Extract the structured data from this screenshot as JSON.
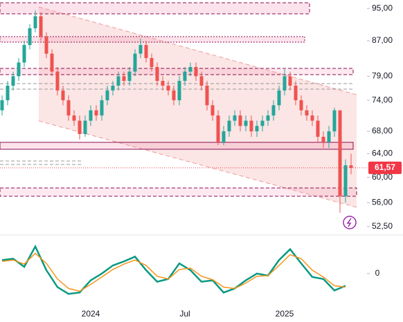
{
  "chart_data": [
    {
      "type": "candlestick",
      "scale": "log",
      "up_color": "#26a69a",
      "down_color": "#ef5350",
      "categories": [
        null,
        null,
        null,
        null,
        null,
        null,
        null,
        null,
        null,
        null,
        null,
        null,
        null,
        null,
        null,
        null,
        "2024",
        null,
        null,
        null,
        null,
        null,
        null,
        null,
        null,
        null,
        null,
        null,
        null,
        null,
        null,
        null,
        null,
        "Jul",
        null,
        null,
        null,
        null,
        null,
        null,
        null,
        null,
        null,
        null,
        null,
        null,
        null,
        null,
        null,
        null,
        null,
        "2025",
        null,
        null,
        null,
        null,
        null,
        null,
        null,
        null,
        null,
        null,
        null,
        null
      ],
      "open": [
        72,
        74,
        77,
        79,
        82,
        86,
        90,
        93,
        88,
        84,
        80,
        76,
        74,
        71,
        70,
        67.5,
        70,
        72,
        71,
        74,
        76,
        77,
        79,
        78,
        80,
        84,
        86,
        83,
        81,
        78,
        77,
        76,
        74,
        78,
        80,
        81,
        79,
        77,
        73,
        71,
        66,
        68,
        70,
        71,
        69,
        70,
        68,
        69,
        70,
        71,
        73,
        76,
        79,
        77,
        74,
        72,
        71,
        70,
        67,
        66,
        68,
        72,
        57,
        62
      ],
      "high": [
        75,
        78,
        80,
        83,
        87,
        91,
        94.5,
        94,
        89,
        85,
        81,
        77,
        75,
        72,
        71,
        71,
        73,
        73,
        75,
        77,
        78,
        80,
        80,
        81,
        85,
        87.5,
        87,
        84,
        82,
        79,
        78,
        77,
        79,
        81,
        82,
        82,
        80,
        78,
        74,
        72,
        69,
        71,
        72,
        72,
        71,
        71,
        70,
        71,
        72,
        74,
        77,
        80.5,
        80,
        78,
        75,
        73,
        72,
        71,
        68,
        69,
        72.5,
        72,
        63,
        64
      ],
      "low": [
        71,
        73,
        76,
        78,
        81,
        85,
        89,
        87,
        83,
        79,
        75,
        73,
        70,
        69,
        66.5,
        67,
        69,
        70,
        70,
        73,
        75,
        76,
        77,
        77,
        79,
        83,
        82,
        80,
        77,
        76,
        75,
        73,
        73,
        77,
        79,
        78,
        76,
        72,
        70,
        65.5,
        65.5,
        67,
        69,
        68,
        68,
        67,
        67,
        68,
        69,
        70,
        72,
        75,
        76,
        73,
        71,
        70,
        69,
        66,
        65,
        65,
        67,
        54.5,
        56,
        60.5
      ],
      "close": [
        74,
        77,
        79,
        82,
        86,
        90,
        93,
        88,
        84,
        80,
        76,
        74,
        71,
        70,
        67.5,
        70,
        72,
        71,
        74,
        76,
        77,
        79,
        78,
        80,
        84,
        86,
        83,
        81,
        78,
        77,
        76,
        74,
        78,
        80,
        81,
        79,
        77,
        73,
        71,
        66,
        68,
        70,
        71,
        69,
        70,
        68,
        69,
        70,
        71,
        73,
        76,
        79,
        77,
        74,
        72,
        71,
        70,
        67,
        66,
        68,
        72,
        57,
        62,
        61.57
      ],
      "ylim": [
        51.3,
        97.2
      ],
      "yticks": [
        {
          "value": 95,
          "label": "95,00"
        },
        {
          "value": 87,
          "label": "87,00"
        },
        {
          "value": 79,
          "label": "79,00"
        },
        {
          "value": 74,
          "label": "74,00"
        },
        {
          "value": 68,
          "label": "68,00"
        },
        {
          "value": 64,
          "label": "64,00"
        },
        {
          "value": 60,
          "label": "60,00"
        },
        {
          "value": 56,
          "label": "56,00"
        },
        {
          "value": 52.5,
          "label": "52,50"
        }
      ],
      "last_price": {
        "value": 61.57,
        "label": "61,57"
      },
      "last_price_color": "#f23645"
    },
    {
      "type": "line",
      "ylim": [
        -45,
        52
      ],
      "yticks": [
        0
      ],
      "series": [
        {
          "color": "#089981",
          "values": [
            20,
            22,
            10,
            40,
            5,
            -20,
            -30,
            -28,
            -10,
            0,
            12,
            18,
            25,
            5,
            -12,
            -8,
            15,
            5,
            -12,
            -10,
            -28,
            -22,
            -10,
            0,
            -3,
            20,
            36,
            15,
            -5,
            -8,
            -25,
            -18
          ]
        },
        {
          "color": "#f7931a",
          "values": [
            18,
            20,
            14,
            30,
            15,
            -8,
            -22,
            -26,
            -16,
            -5,
            6,
            14,
            20,
            12,
            -4,
            -8,
            6,
            8,
            -4,
            -9,
            -20,
            -22,
            -14,
            -4,
            -3,
            12,
            28,
            22,
            5,
            -5,
            -18,
            -20
          ]
        }
      ]
    }
  ]
}
